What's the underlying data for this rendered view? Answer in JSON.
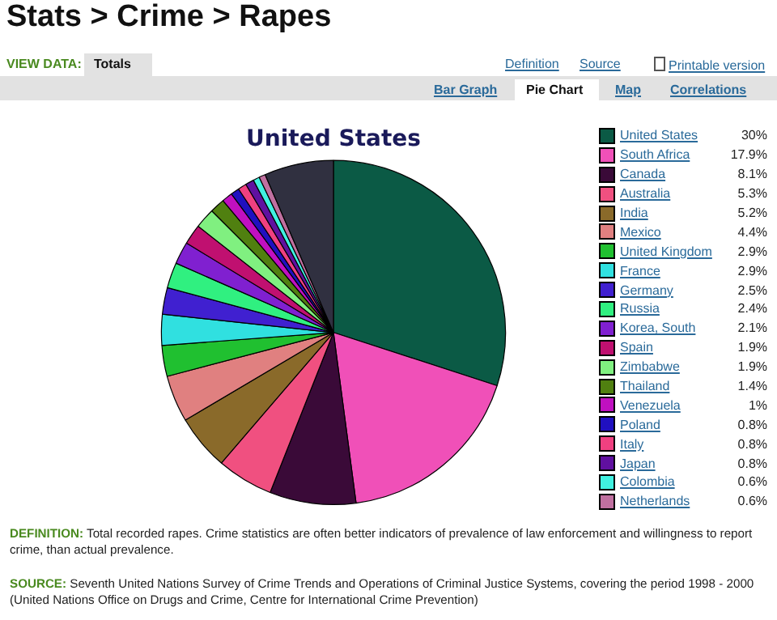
{
  "chart_data": {
    "type": "pie",
    "title": "Stats > Crime > Rapes",
    "subtitle": "United States",
    "categories": [
      "United States",
      "South Africa",
      "Canada",
      "Australia",
      "India",
      "Mexico",
      "United Kingdom",
      "France",
      "Germany",
      "Russia",
      "Korea, South",
      "Spain",
      "Zimbabwe",
      "Thailand",
      "Venezuela",
      "Poland",
      "Italy",
      "Japan",
      "Colombia",
      "Netherlands",
      null
    ],
    "values": [
      30,
      17.9,
      8.1,
      5.3,
      5.2,
      4.4,
      2.9,
      2.9,
      2.5,
      2.4,
      2.1,
      1.9,
      1.9,
      1.4,
      1,
      0.8,
      0.8,
      0.8,
      0.6,
      0.6,
      6.5
    ],
    "value_labels": [
      "30%",
      "17.9%",
      "8.1%",
      "5.3%",
      "5.2%",
      "4.4%",
      "2.9%",
      "2.9%",
      "2.5%",
      "2.4%",
      "2.1%",
      "1.9%",
      "1.9%",
      "1.4%",
      "1%",
      "0.8%",
      "0.8%",
      "0.8%",
      "0.6%",
      "0.6%",
      null
    ],
    "colors": [
      "#0b5a45",
      "#f050b8",
      "#3a0a38",
      "#f05080",
      "#8a6a2a",
      "#e08080",
      "#20c030",
      "#30e0e0",
      "#4020d0",
      "#30f080",
      "#8020d0",
      "#c01070",
      "#80f080",
      "#508010",
      "#c010c0",
      "#2010c0",
      "#f04080",
      "#6010a0",
      "#40f0e0",
      "#c070a0",
      "#303040"
    ],
    "legend": "right",
    "annotations": [
      "VIEW DATA:",
      "Totals",
      "Definition",
      "Source",
      "Printable version",
      "Bar Graph",
      "Pie Chart",
      "Map",
      "Correlations",
      "DEFINITION: Total recorded rapes. Crime statistics are often better indicators of prevalence of law enforcement and willingness to report crime, than actual prevalence.",
      "SOURCE: Seventh United Nations Survey of Crime Trends and Operations of Criminal Justice Systems, covering the period 1998 - 2000 (United Nations Office on Drugs and Crime, Centre for International Crime Prevention)"
    ]
  }
}
